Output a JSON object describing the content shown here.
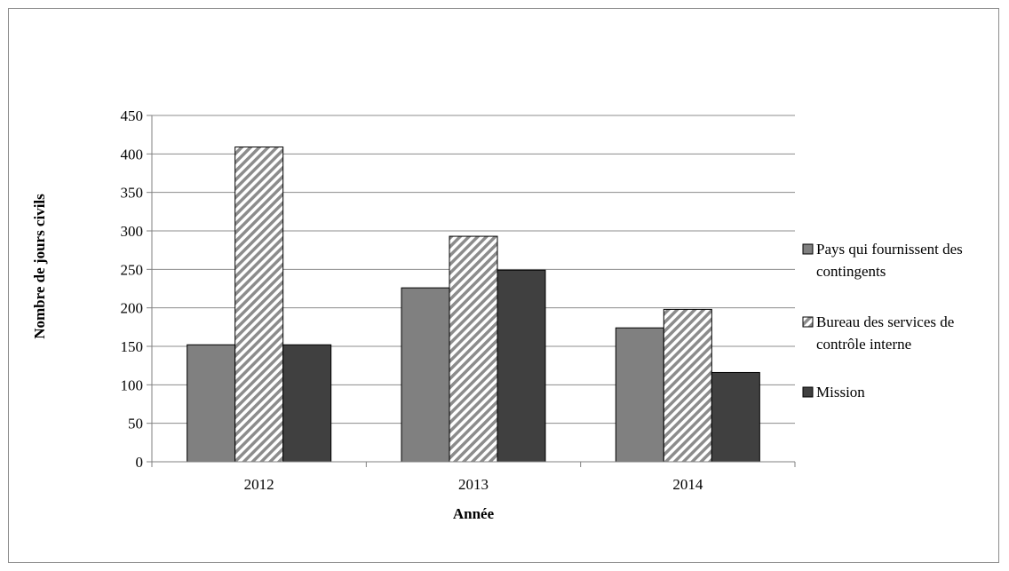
{
  "chart_data": {
    "type": "bar",
    "title": "",
    "xlabel": "Année",
    "ylabel": "Nombre de jours civils",
    "categories": [
      "2012",
      "2013",
      "2014"
    ],
    "ylim": [
      0,
      450
    ],
    "yticks": [
      "0",
      "50",
      "100",
      "150",
      "200",
      "250",
      "300",
      "350",
      "400",
      "450"
    ],
    "grid": true,
    "legend_position": "right",
    "series": [
      {
        "name": "Pays qui fournissent des contingents",
        "legend_lines": [
          "Pays qui fournissent des",
          "contingents"
        ],
        "values": [
          152,
          226,
          174
        ],
        "color": "#808080",
        "pattern": "solid"
      },
      {
        "name": "Bureau des services de contrôle interne",
        "legend_lines": [
          "Bureau des services de",
          "contrôle interne"
        ],
        "values": [
          409,
          293,
          198
        ],
        "color": "#a6a6a6",
        "pattern": "diagonal-stripes"
      },
      {
        "name": "Mission",
        "legend_lines": [
          "Mission"
        ],
        "values": [
          152,
          249,
          116
        ],
        "color": "#404040",
        "pattern": "solid"
      }
    ]
  }
}
